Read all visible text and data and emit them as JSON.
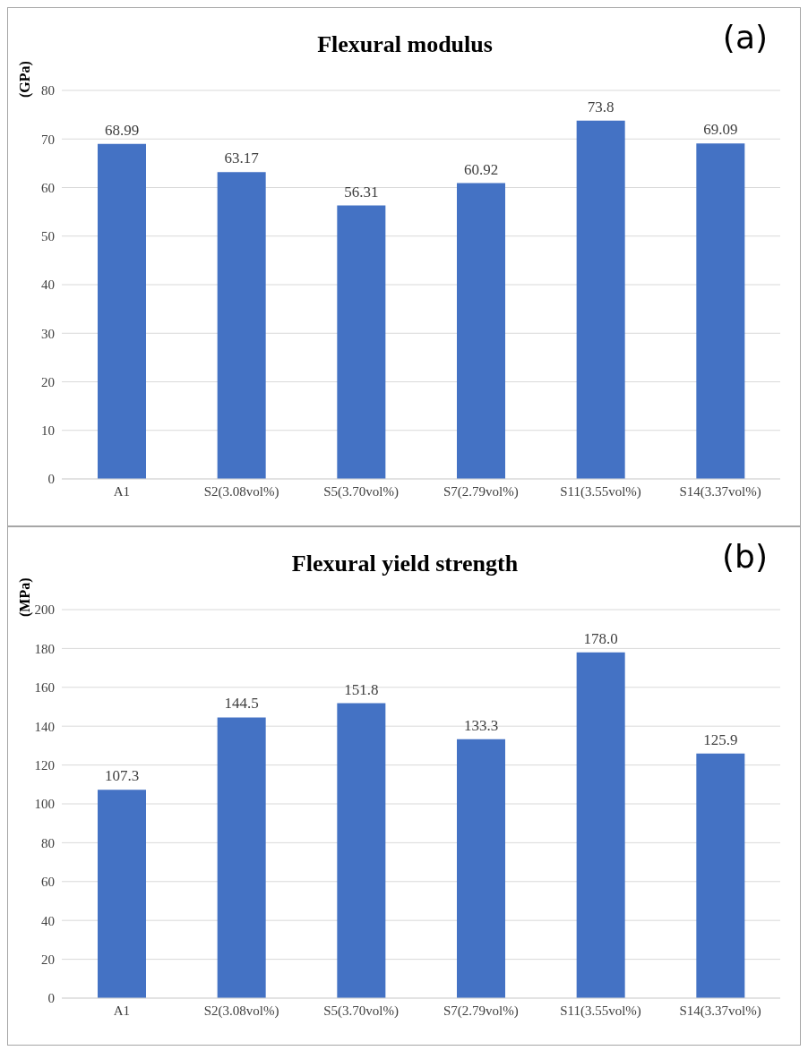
{
  "chart_data": [
    {
      "type": "bar",
      "title": "Flexural modulus",
      "ylabel": "(GPa)",
      "annotations": [
        "(a)"
      ],
      "categories": [
        "A1",
        "S2(3.08vol%)",
        "S5(3.70vol%)",
        "S7(2.79vol%)",
        "S11(3.55vol%)",
        "S14(3.37vol%)"
      ],
      "values": [
        68.99,
        63.17,
        56.31,
        60.92,
        73.8,
        69.09
      ],
      "color": "#4472c4",
      "ylim": [
        0,
        80
      ],
      "yticks": [
        0,
        10,
        20,
        30,
        40,
        50,
        60,
        70,
        80
      ],
      "grid": "y",
      "data_labels": true
    },
    {
      "type": "bar",
      "title": "Flexural yield strength",
      "ylabel": "(MPa)",
      "annotations": [
        "(b)"
      ],
      "categories": [
        "A1",
        "S2(3.08vol%)",
        "S5(3.70vol%)",
        "S7(2.79vol%)",
        "S11(3.55vol%)",
        "S14(3.37vol%)"
      ],
      "values": [
        107.3,
        144.5,
        151.8,
        133.3,
        178.0,
        125.9
      ],
      "color": "#4472c4",
      "value_labels": [
        "107.3",
        "144.5",
        "151.8",
        "133.3",
        "178.0",
        "125.9"
      ],
      "ylim": [
        0,
        200
      ],
      "yticks": [
        0,
        20,
        40,
        60,
        80,
        100,
        120,
        140,
        160,
        180,
        200
      ],
      "grid": "y"
    }
  ]
}
